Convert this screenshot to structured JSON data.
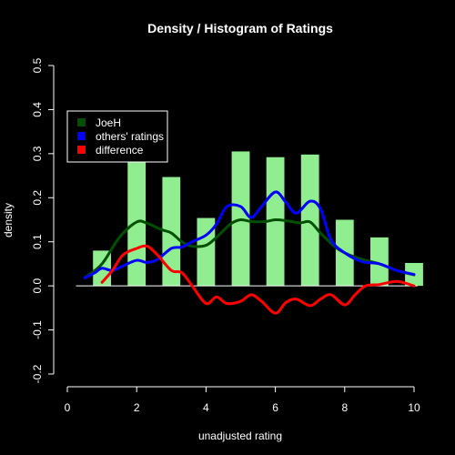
{
  "chart_data": {
    "type": "bar",
    "title": "Density / Histogram of Ratings",
    "xlabel": "unadjusted rating",
    "ylabel": "density",
    "xlim": [
      0,
      10
    ],
    "ylim": [
      -0.2,
      0.5
    ],
    "x_ticks": [
      "0",
      "2",
      "4",
      "6",
      "8",
      "10"
    ],
    "y_ticks": [
      "-0.2",
      "-0.1",
      "0.0",
      "0.1",
      "0.2",
      "0.3",
      "0.4",
      "0.5"
    ],
    "grid": false,
    "legend_position": "top-left",
    "histogram": {
      "color": "#90EE90",
      "bins": [
        {
          "center": 1,
          "value": 0.08
        },
        {
          "center": 2,
          "value": 0.285
        },
        {
          "center": 3,
          "value": 0.247
        },
        {
          "center": 4,
          "value": 0.154
        },
        {
          "center": 5,
          "value": 0.305
        },
        {
          "center": 6,
          "value": 0.292
        },
        {
          "center": 7,
          "value": 0.298
        },
        {
          "center": 8,
          "value": 0.15
        },
        {
          "center": 9,
          "value": 0.11
        },
        {
          "center": 10,
          "value": 0.052
        }
      ]
    },
    "series": [
      {
        "name": "JoeH",
        "color": "#005000",
        "x": [
          0.5,
          1.0,
          1.5,
          2.0,
          2.3,
          2.7,
          3.0,
          3.3,
          3.6,
          4.0,
          4.3,
          4.7,
          5.0,
          5.3,
          5.7,
          6.0,
          6.3,
          6.7,
          7.0,
          7.3,
          7.7,
          8.0,
          8.5,
          9.0,
          9.5,
          10.0
        ],
        "y": [
          0.018,
          0.05,
          0.11,
          0.145,
          0.142,
          0.128,
          0.12,
          0.1,
          0.09,
          0.092,
          0.11,
          0.14,
          0.15,
          0.146,
          0.146,
          0.15,
          0.148,
          0.143,
          0.145,
          0.12,
          0.09,
          0.075,
          0.06,
          0.05,
          0.035,
          0.025
        ]
      },
      {
        "name": "others' ratings",
        "color": "#0000FF",
        "x": [
          0.5,
          0.8,
          1.0,
          1.3,
          1.6,
          2.0,
          2.3,
          2.6,
          3.0,
          3.3,
          3.6,
          4.0,
          4.3,
          4.6,
          5.0,
          5.3,
          5.6,
          6.0,
          6.3,
          6.6,
          7.0,
          7.3,
          7.6,
          8.0,
          8.5,
          9.0,
          9.5,
          10.0
        ],
        "y": [
          0.018,
          0.03,
          0.04,
          0.035,
          0.045,
          0.058,
          0.053,
          0.06,
          0.085,
          0.088,
          0.1,
          0.115,
          0.14,
          0.18,
          0.18,
          0.155,
          0.18,
          0.213,
          0.19,
          0.165,
          0.192,
          0.175,
          0.105,
          0.075,
          0.055,
          0.05,
          0.035,
          0.026
        ]
      },
      {
        "name": "difference",
        "color": "#FF0000",
        "x": [
          1.0,
          1.3,
          1.6,
          2.0,
          2.3,
          2.6,
          3.0,
          3.3,
          3.6,
          4.0,
          4.3,
          4.6,
          5.0,
          5.3,
          5.6,
          6.0,
          6.3,
          6.6,
          7.0,
          7.3,
          7.6,
          8.0,
          8.3,
          8.6,
          9.0,
          9.5,
          10.0
        ],
        "y": [
          0.008,
          0.035,
          0.07,
          0.085,
          0.09,
          0.07,
          0.035,
          0.03,
          0.0,
          -0.04,
          -0.025,
          -0.04,
          -0.035,
          -0.02,
          -0.035,
          -0.062,
          -0.038,
          -0.03,
          -0.045,
          -0.03,
          -0.02,
          -0.043,
          -0.02,
          0.0,
          0.003,
          0.01,
          0.0
        ]
      }
    ]
  }
}
